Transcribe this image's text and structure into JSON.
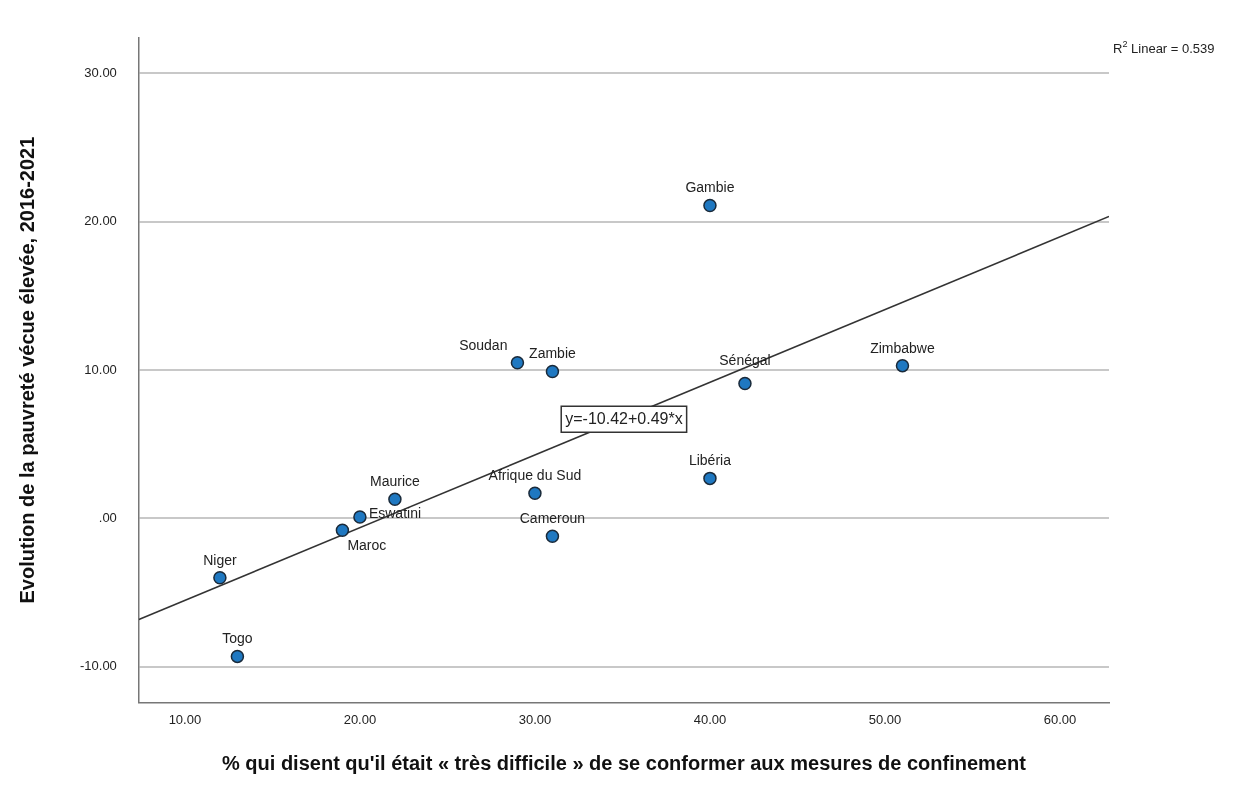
{
  "chart_data": {
    "type": "scatter",
    "xlabel": "% qui disent qu'il était « très difficile » de se conformer aux mesures de confinement",
    "ylabel": "Evolution de la pauvreté vécue élevée, 2016-2021",
    "annotations": [
      "R$^{2}$ Linear = 0.539",
      "y=-10.42+0.49*x"
    ],
    "series": [
      {
        "color": "#1f78c1",
        "marker": "circle",
        "x": [
          40,
          29,
          31,
          42,
          51,
          40,
          30,
          31,
          22,
          20,
          19,
          12,
          13
        ],
        "values": [
          21.1,
          10.5,
          9.9,
          9.1,
          10.3,
          2.7,
          1.7,
          -1.2,
          1.3,
          0.1,
          -0.8,
          -4.0,
          -9.3
        ],
        "value_labels": [
          "Gambie",
          "Soudan",
          "Zambie",
          "Sénégal",
          "Zimbabwe",
          "Libéria",
          "Afrique du Sud",
          "Cameroun",
          "Maurice",
          "Eswatini",
          "Maroc",
          "Niger",
          "Togo"
        ]
      },
      {
        "type": "line",
        "color": "#333333",
        "x": [
          7.37,
          62.8
        ],
        "values": [
          -6.81,
          20.35
        ]
      }
    ],
    "xlim": [
      7.37,
      62.8
    ],
    "ylim": [
      -12.4,
      32.4
    ],
    "xticks": [
      {
        "value": 10,
        "label": "10.00"
      },
      {
        "value": 20,
        "label": "20.00"
      },
      {
        "value": 30,
        "label": "30.00"
      },
      {
        "value": 40,
        "label": "40.00"
      },
      {
        "value": 50,
        "label": "50.00"
      },
      {
        "value": 60,
        "label": "60.00"
      }
    ],
    "yticks": [
      {
        "value": -10,
        "label": "-10.00"
      },
      {
        "value": 0,
        "label": ".00"
      },
      {
        "value": 10,
        "label": "10.00"
      },
      {
        "value": 20,
        "label": "20.00"
      },
      {
        "value": 30,
        "label": "30.00"
      }
    ],
    "grid": "y",
    "legend": false
  }
}
